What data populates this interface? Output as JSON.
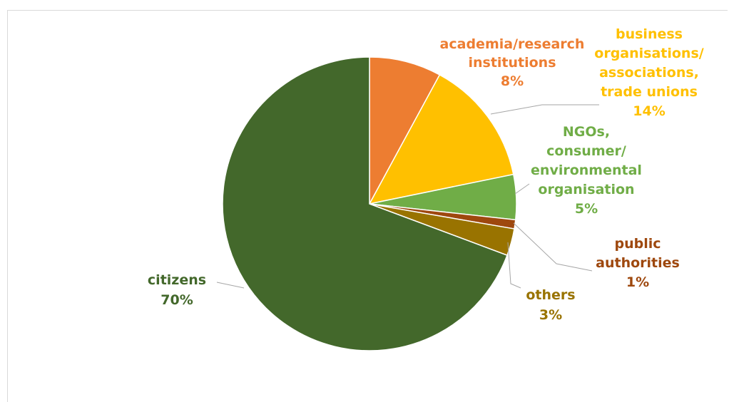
{
  "chart_data": {
    "type": "pie",
    "title": "",
    "slices": [
      {
        "label": [
          "academia/research",
          "institutions"
        ],
        "value": 8,
        "value_label": "8%",
        "color": "#ED7D31"
      },
      {
        "label": [
          "business",
          "organisations/",
          "associations,",
          "trade unions"
        ],
        "value": 14,
        "value_label": "14%",
        "color": "#FFC000"
      },
      {
        "label": [
          "NGOs,",
          "consumer/",
          "environmental",
          "organisation"
        ],
        "value": 5,
        "value_label": "5%",
        "color": "#70AD47"
      },
      {
        "label": [
          "public",
          "authorities"
        ],
        "value": 1,
        "value_label": "1%",
        "color": "#9E480E"
      },
      {
        "label": [
          "others"
        ],
        "value": 3,
        "value_label": "3%",
        "color": "#997300"
      },
      {
        "label": [
          "citizens"
        ],
        "value": 70,
        "value_label": "70%",
        "color": "#43682B"
      }
    ],
    "label_colors": [
      "#ED7D31",
      "#FFC000",
      "#70AD47",
      "#9E480E",
      "#997300",
      "#43682B"
    ],
    "legend": "none"
  }
}
